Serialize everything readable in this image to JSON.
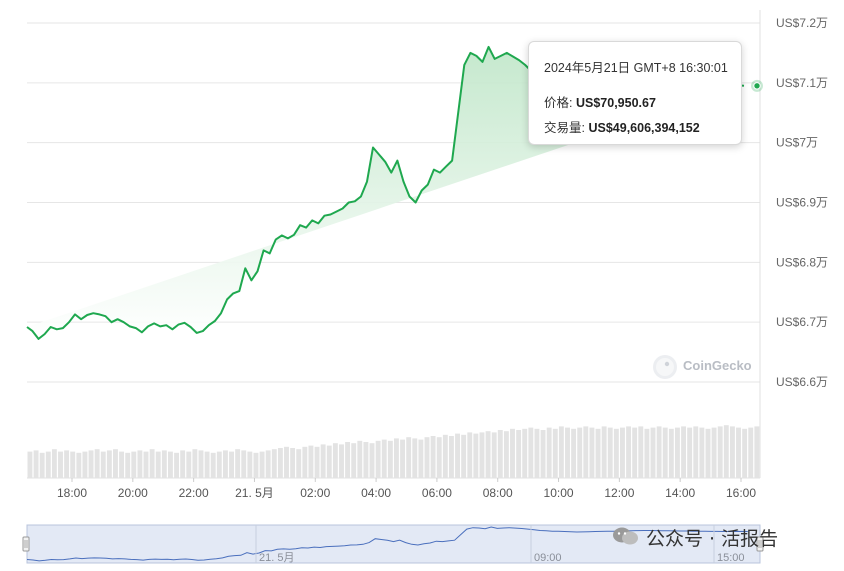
{
  "chart_data": {
    "type": "area",
    "ylim": [
      65500,
      72000
    ],
    "y_ticks": [
      {
        "value": 72000,
        "label": "US$7.2万"
      },
      {
        "value": 71000,
        "label": "US$7.1万"
      },
      {
        "value": 70000,
        "label": "US$7万"
      },
      {
        "value": 69000,
        "label": "US$6.9万"
      },
      {
        "value": 68000,
        "label": "US$6.8万"
      },
      {
        "value": 67000,
        "label": "US$6.7万"
      },
      {
        "value": 66000,
        "label": "US$6.6万"
      }
    ],
    "x_range_hours": [
      16.5,
      40.5
    ],
    "x_ticks": [
      {
        "t": 18,
        "label": "18:00"
      },
      {
        "t": 20,
        "label": "20:00"
      },
      {
        "t": 22,
        "label": "22:00"
      },
      {
        "t": 24,
        "label": "21. 5月"
      },
      {
        "t": 26,
        "label": "02:00"
      },
      {
        "t": 28,
        "label": "04:00"
      },
      {
        "t": 30,
        "label": "06:00"
      },
      {
        "t": 32,
        "label": "08:00"
      },
      {
        "t": 34,
        "label": "10:00"
      },
      {
        "t": 36,
        "label": "12:00"
      },
      {
        "t": 38,
        "label": "14:00"
      },
      {
        "t": 40,
        "label": "16:00"
      }
    ],
    "price_series": {
      "t": [
        16.5,
        16.7,
        16.9,
        17.1,
        17.3,
        17.5,
        17.7,
        17.9,
        18.1,
        18.3,
        18.5,
        18.7,
        18.9,
        19.1,
        19.3,
        19.5,
        19.7,
        19.9,
        20.1,
        20.3,
        20.5,
        20.7,
        20.9,
        21.1,
        21.3,
        21.5,
        21.7,
        21.9,
        22.1,
        22.3,
        22.5,
        22.7,
        22.9,
        23.1,
        23.3,
        23.5,
        23.7,
        23.9,
        24.1,
        24.3,
        24.5,
        24.7,
        24.9,
        25.1,
        25.3,
        25.5,
        25.7,
        25.9,
        26.1,
        26.3,
        26.5,
        26.7,
        26.9,
        27.1,
        27.3,
        27.5,
        27.7,
        27.9,
        28.1,
        28.3,
        28.5,
        28.7,
        28.9,
        29.1,
        29.3,
        29.5,
        29.7,
        29.9,
        30.1,
        30.3,
        30.5,
        30.7,
        30.9,
        31.1,
        31.3,
        31.5,
        31.7,
        31.9,
        32.1,
        32.3,
        32.5,
        32.7,
        32.9,
        33.1,
        33.3,
        33.5,
        33.7,
        33.9,
        34.1,
        34.3,
        34.5,
        34.7,
        34.9,
        35.1,
        35.3,
        35.5,
        35.7,
        35.9,
        36.1,
        36.3,
        36.5,
        36.7,
        36.9,
        37.1,
        37.3,
        37.5,
        37.7,
        37.9,
        38.1,
        38.3,
        38.5,
        38.7,
        38.9,
        39.1,
        39.3,
        39.5,
        39.7,
        39.9,
        40.1,
        40.3,
        40.5
      ],
      "price": [
        66920,
        66850,
        66720,
        66800,
        66920,
        66880,
        66900,
        67000,
        67130,
        67050,
        67120,
        67150,
        67130,
        67100,
        67000,
        67050,
        67000,
        66930,
        66900,
        66830,
        66930,
        66980,
        66930,
        66950,
        66880,
        66960,
        66990,
        66920,
        66820,
        66850,
        66950,
        67020,
        67150,
        67380,
        67480,
        67520,
        67900,
        67700,
        67850,
        68200,
        68150,
        68380,
        68450,
        68400,
        68460,
        68620,
        68580,
        68700,
        68650,
        68780,
        68800,
        68850,
        68900,
        69000,
        69020,
        69100,
        69350,
        69920,
        69800,
        69680,
        69500,
        69700,
        69350,
        69100,
        69000,
        69200,
        69300,
        69550,
        69500,
        69600,
        69700,
        70500,
        71300,
        71500,
        71450,
        71350,
        71600,
        71400,
        71450,
        71500,
        71440,
        71380,
        71300,
        71200,
        71100,
        71050,
        71000,
        70980,
        70950,
        70920,
        70880,
        70900,
        70920,
        70950,
        70960,
        70980,
        71000,
        71020,
        71040,
        71060,
        71080,
        71090,
        71100,
        71080,
        71060,
        71050,
        71040,
        71030,
        71020,
        71000,
        70990,
        70980,
        70970,
        70960,
        70955,
        70950,
        70955,
        70960,
        70950
      ]
    },
    "volume_series": {
      "note": "",
      "values": [
        22,
        23,
        21,
        22,
        24,
        22,
        23,
        22,
        21,
        22,
        23,
        24,
        22,
        23,
        24,
        22,
        21,
        22,
        23,
        22,
        24,
        22,
        23,
        22,
        21,
        23,
        22,
        24,
        23,
        22,
        21,
        22,
        23,
        22,
        24,
        23,
        22,
        21,
        22,
        23,
        24,
        25,
        26,
        25,
        24,
        26,
        27,
        26,
        28,
        27,
        29,
        28,
        30,
        29,
        31,
        30,
        29,
        31,
        32,
        31,
        33,
        32,
        34,
        33,
        32,
        34,
        35,
        34,
        36,
        35,
        37,
        36,
        38,
        37,
        38,
        39,
        38,
        40,
        39,
        41,
        40,
        41,
        42,
        41,
        40,
        42,
        41,
        43,
        42,
        41,
        42,
        43,
        42,
        41,
        43,
        42,
        41,
        42,
        43,
        42,
        43,
        41,
        42,
        43,
        42,
        41,
        42,
        43,
        42,
        43,
        42,
        41,
        42,
        43,
        44,
        43,
        42,
        41,
        42,
        43
      ]
    },
    "navigator": {
      "labels": [
        {
          "label": "21. 5月"
        },
        {
          "label": "09:00"
        },
        {
          "label": "15:00"
        }
      ]
    }
  },
  "tooltip": {
    "time": "2024年5月21日 GMT+8 16:30:01",
    "price_label": "价格:",
    "price_value": "US$70,950.67",
    "volume_label": "交易量:",
    "volume_value": "US$49,606,394,152"
  },
  "brand": {
    "watermark": "CoinGecko"
  },
  "overlay": {
    "text": "公众号 · 活报告"
  },
  "colors": {
    "line": "#1fa84f",
    "fill_top": "#bfe6c8",
    "fill_bottom": "#ffffff",
    "grid": "#e6e6e6",
    "volume": "#e3e3e3",
    "navigator_line": "#4a6fbd",
    "navigator_bg": "#e3e9f5",
    "axis_text": "#666666"
  }
}
